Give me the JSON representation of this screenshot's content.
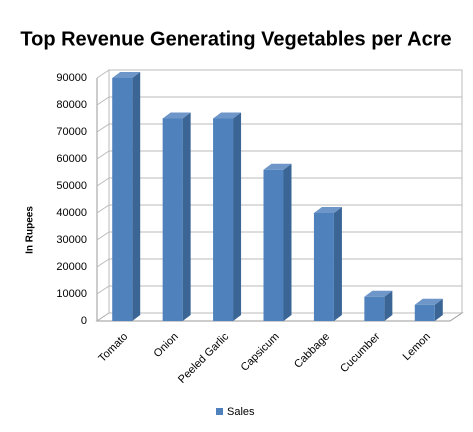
{
  "chart_data": {
    "type": "bar",
    "title": "Top Revenue Generating Vegetables per Acre",
    "y_label": "In Rupees",
    "categories": [
      "Tomato",
      "Onion",
      "Peeled Garlic",
      "Capsicum",
      "Cabbage",
      "Cucumber",
      "Lemon"
    ],
    "series": [
      {
        "name": "Sales",
        "color": "#4f81bd",
        "values": [
          90000,
          75000,
          75000,
          56000,
          40000,
          9000,
          6000
        ]
      }
    ],
    "ylim": [
      0,
      90000
    ],
    "yticks": [
      0,
      10000,
      20000,
      30000,
      40000,
      50000,
      60000,
      70000,
      80000,
      90000
    ],
    "grid": true,
    "legend": "bottom"
  }
}
